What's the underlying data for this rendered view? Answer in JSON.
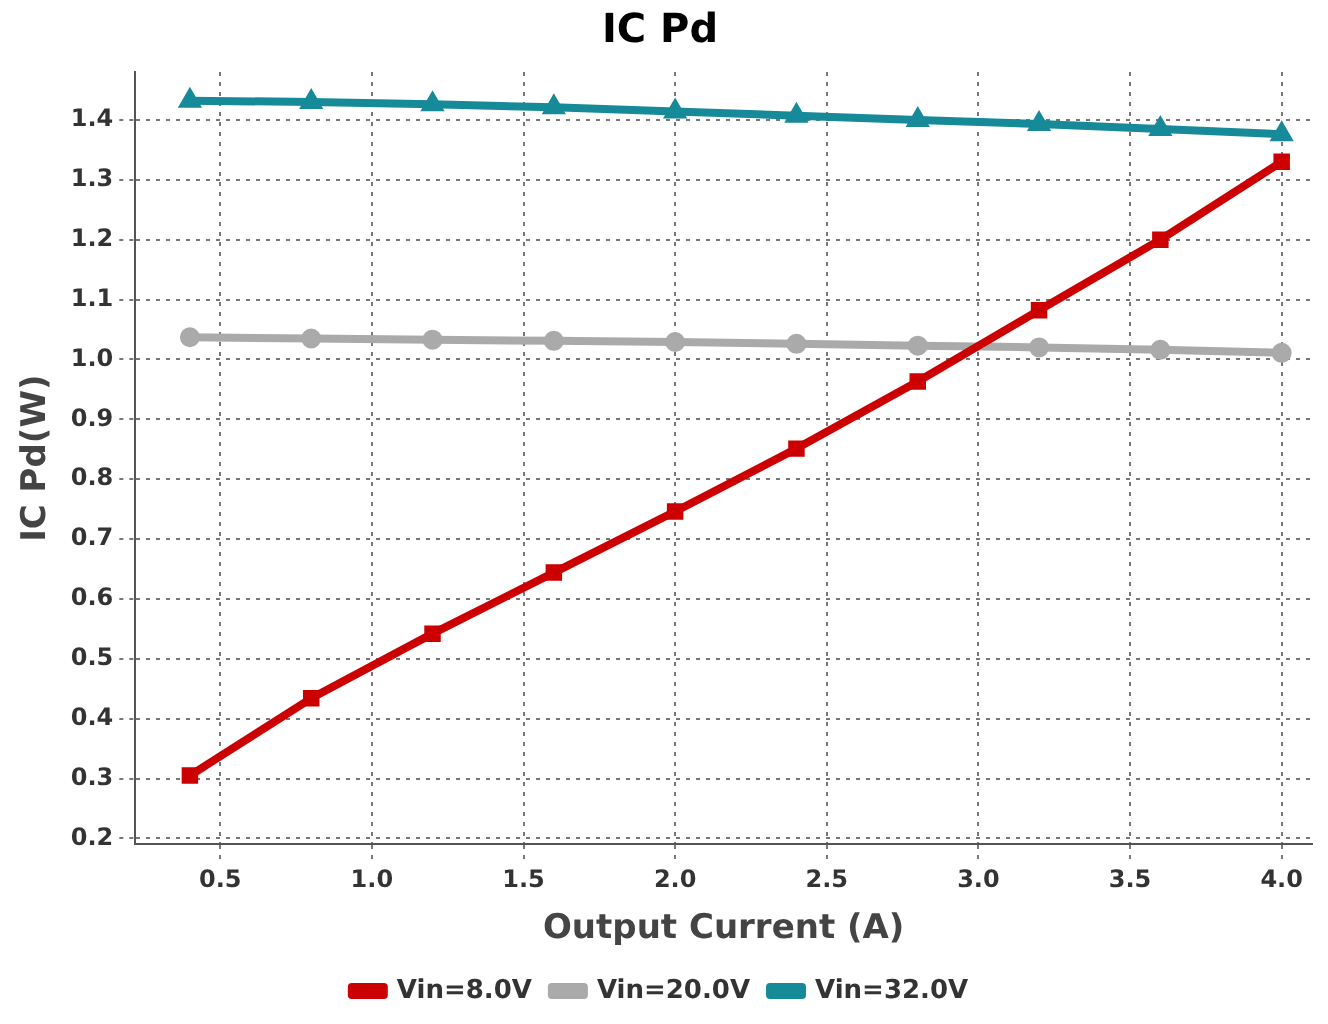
{
  "chart_data": {
    "type": "line",
    "title": "IC Pd",
    "xlabel": "Output Current (A)",
    "ylabel": "IC Pd(W)",
    "x": [
      0.4,
      0.8,
      1.2,
      1.6,
      2.0,
      2.4,
      2.8,
      3.2,
      3.6,
      4.0
    ],
    "series": [
      {
        "name": "Vin=8.0V",
        "color": "#cc0000",
        "marker": "square",
        "values": [
          0.305,
          0.434,
          0.542,
          0.644,
          0.746,
          0.851,
          0.963,
          1.082,
          1.2,
          1.33
        ]
      },
      {
        "name": "Vin=20.0V",
        "color": "#aaaaaa",
        "marker": "circle",
        "values": [
          1.037,
          1.035,
          1.033,
          1.031,
          1.029,
          1.026,
          1.023,
          1.02,
          1.016,
          1.011
        ]
      },
      {
        "name": "Vin=32.0V",
        "color": "#168a99",
        "marker": "triangle",
        "values": [
          1.432,
          1.43,
          1.426,
          1.421,
          1.414,
          1.407,
          1.4,
          1.393,
          1.385,
          1.376
        ]
      }
    ],
    "xlim": [
      0.22,
      4.1
    ],
    "ylim": [
      0.19,
      1.48
    ],
    "xticks": [
      0.5,
      {
        "value": 1,
        "label": "1.0"
      },
      1.5,
      {
        "value": 2,
        "label": "2.0"
      },
      2.5,
      {
        "value": 3,
        "label": "3.0"
      },
      3.5,
      {
        "value": 4,
        "label": "4.0"
      }
    ],
    "yticks": [
      0.2,
      0.3,
      0.4,
      0.5,
      0.6,
      0.7,
      0.8,
      0.9,
      {
        "value": 1,
        "label": "1.0"
      },
      1.1,
      1.2,
      1.3,
      1.4
    ],
    "grid": true,
    "legend": "bottom",
    "line_style": "solid"
  }
}
